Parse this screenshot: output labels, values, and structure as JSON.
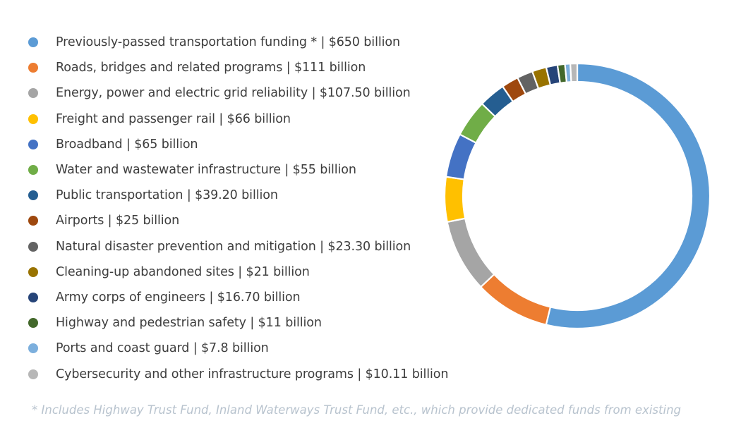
{
  "chart_data": {
    "type": "pie",
    "title": "",
    "slices": [
      {
        "label": "Previously-passed transportation funding * | $650 billion",
        "value": 650,
        "color": "#5b9bd5"
      },
      {
        "label": "Roads, bridges and related programs | $111 billion",
        "value": 111,
        "color": "#ed7d31"
      },
      {
        "label": "Energy, power and electric grid reliability | $107.50 billion",
        "value": 107.5,
        "color": "#a5a5a5"
      },
      {
        "label": "Freight and passenger rail | $66 billion",
        "value": 66,
        "color": "#ffc000"
      },
      {
        "label": "Broadband | $65 billion",
        "value": 65,
        "color": "#4472c4"
      },
      {
        "label": "Water and wastewater infrastructure | $55 billion",
        "value": 55,
        "color": "#70ad47"
      },
      {
        "label": "Public transportation | $39.20 billion",
        "value": 39.2,
        "color": "#255e91"
      },
      {
        "label": "Airports | $25 billion",
        "value": 25,
        "color": "#9e480e"
      },
      {
        "label": "Natural disaster prevention and mitigation | $23.30 billion",
        "value": 23.3,
        "color": "#636363"
      },
      {
        "label": "Cleaning-up abandoned sites | $21 billion",
        "value": 21,
        "color": "#997300"
      },
      {
        "label": "Army corps of engineers | $16.70 billion",
        "value": 16.7,
        "color": "#264478"
      },
      {
        "label": "Highway and pedestrian safety | $11 billion",
        "value": 11,
        "color": "#43682b"
      },
      {
        "label": "Ports and coast guard | $7.8 billion",
        "value": 7.8,
        "color": "#7cafdd"
      },
      {
        "label": "Cybersecurity and other infrastructure programs | $10.11 billion",
        "value": 10.11,
        "color": "#b7b7b7"
      }
    ],
    "footnote": "* Includes Highway Trust Fund, Inland Waterways Trust Fund, etc., which provide dedicated funds from existing"
  }
}
